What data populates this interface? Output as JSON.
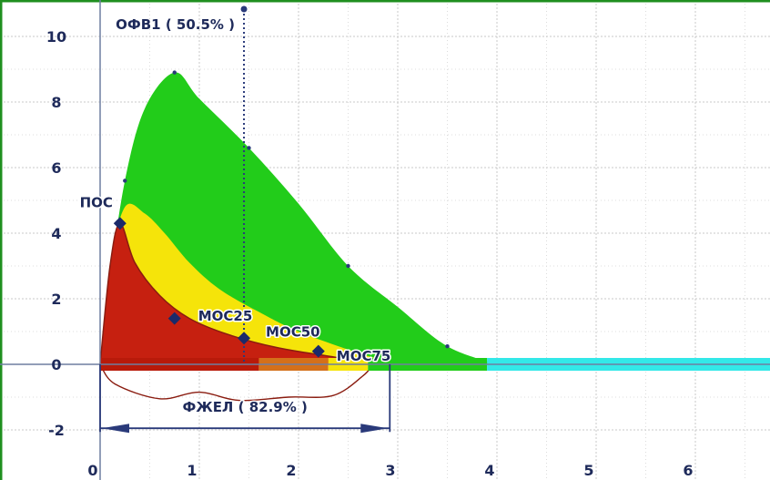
{
  "chart_data": {
    "type": "line",
    "title": "",
    "xlabel": "",
    "ylabel": "",
    "xlim": [
      0,
      6.8
    ],
    "ylim": [
      -2.35,
      10.5
    ],
    "x_ticks": [
      0,
      1,
      2,
      3,
      4,
      5,
      6
    ],
    "y_ticks": [
      -2,
      0,
      2,
      4,
      6,
      8,
      10
    ],
    "grid": true,
    "series": [
      {
        "color": "#22cc1a",
        "x": [
          0,
          0.1,
          0.25,
          0.45,
          0.75,
          1.0,
          1.5,
          2.0,
          2.5,
          3.0,
          3.5,
          4.0
        ],
        "values": [
          0,
          2.6,
          5.6,
          7.8,
          8.9,
          8.1,
          6.6,
          4.9,
          3.0,
          1.75,
          0.55,
          0
        ]
      },
      {
        "color": "#f5e40a",
        "x": [
          0,
          0.1,
          0.25,
          0.45,
          0.65,
          0.9,
          1.2,
          1.6,
          2.0,
          2.6,
          3.0
        ],
        "values": [
          0,
          3.0,
          4.8,
          4.6,
          4.0,
          3.1,
          2.3,
          1.6,
          1.0,
          0.35,
          0
        ]
      },
      {
        "color": "#c62010",
        "x": [
          0,
          0.1,
          0.2,
          0.35,
          0.6,
          0.9,
          1.3,
          1.8,
          2.4,
          2.7
        ],
        "values": [
          0,
          3.0,
          4.3,
          3.1,
          2.1,
          1.4,
          0.9,
          0.5,
          0.2,
          0
        ]
      }
    ],
    "expiration_bar": [
      {
        "color": "#b81a0a",
        "x_start": 0,
        "x_end": 1.6
      },
      {
        "color": "#d4701a",
        "x_start": 1.6,
        "x_end": 2.3
      },
      {
        "color": "#f5e40a",
        "x_start": 2.3,
        "x_end": 2.7
      },
      {
        "color": "#22cc1a",
        "x_start": 2.7,
        "x_end": 3.9
      },
      {
        "color": "#33e8e8",
        "x_start": 3.9,
        "x_end": 6.8
      }
    ],
    "points": [
      {
        "label": "ПОС",
        "x": 0.2,
        "y": 4.3
      },
      {
        "label": "МОС25",
        "x": 0.75,
        "y": 1.4
      },
      {
        "label": "МОС50",
        "x": 1.45,
        "y": 0.8
      },
      {
        "label": "МОС75",
        "x": 2.2,
        "y": 0.4
      }
    ],
    "annotations": [
      {
        "text": "ОФВ1 ( 50.5% )",
        "x": 1.45
      },
      {
        "text": "ФЖЕЛ ( 82.9% )",
        "x_start": 0,
        "x_end": 2.92
      }
    ]
  }
}
